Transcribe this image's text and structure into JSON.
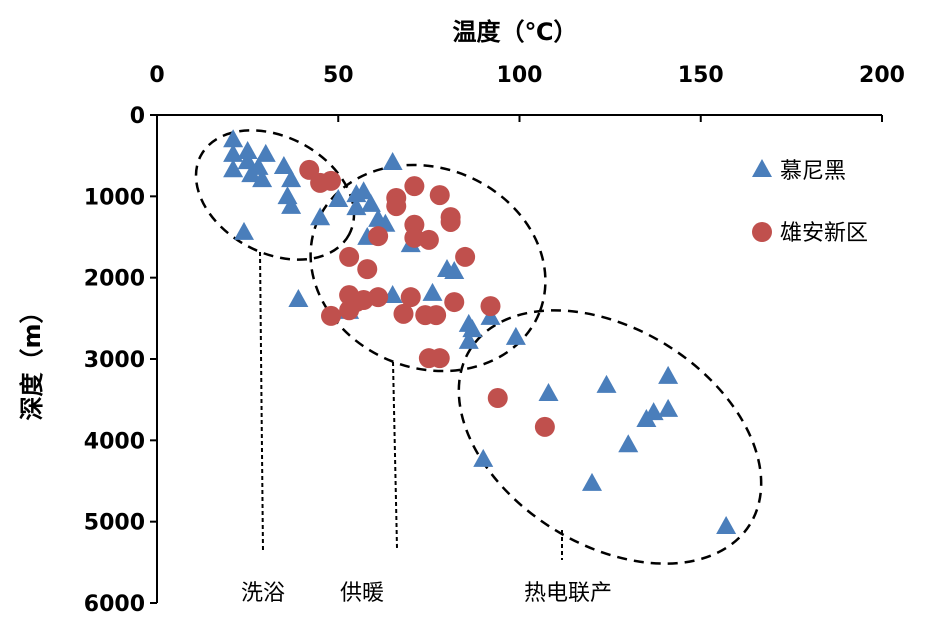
{
  "chart_data": {
    "type": "scatter",
    "xlabel": "温度（℃）",
    "ylabel": "深度（m）",
    "xlim": [
      0,
      200
    ],
    "ylim": [
      0,
      6000
    ],
    "y_inverted": true,
    "x_axis_position": "top",
    "xticks": [
      "0",
      "50",
      "100",
      "150",
      "200"
    ],
    "yticks": [
      "0",
      "1000",
      "2000",
      "3000",
      "4000",
      "5000",
      "6000"
    ],
    "grid": false,
    "legend_position": "right",
    "annotations": [
      "洗浴",
      "供暖",
      "热电联产"
    ],
    "series": [
      {
        "name": "慕尼黑",
        "marker": "triangle",
        "color": "#4a7ebb",
        "points": [
          [
            21,
            310
          ],
          [
            21,
            490
          ],
          [
            25,
            455
          ],
          [
            21,
            680
          ],
          [
            25,
            580
          ],
          [
            28,
            650
          ],
          [
            26,
            740
          ],
          [
            30,
            490
          ],
          [
            29,
            800
          ],
          [
            35,
            640
          ],
          [
            37,
            800
          ],
          [
            36,
            1010
          ],
          [
            37,
            1130
          ],
          [
            24,
            1450
          ],
          [
            65,
            590
          ],
          [
            45,
            1270
          ],
          [
            50,
            1045
          ],
          [
            55,
            985
          ],
          [
            55,
            1145
          ],
          [
            57,
            950
          ],
          [
            59,
            1105
          ],
          [
            61,
            1290
          ],
          [
            63,
            1350
          ],
          [
            58,
            1510
          ],
          [
            70,
            1600
          ],
          [
            80,
            1905
          ],
          [
            82,
            1930
          ],
          [
            39,
            2275
          ],
          [
            53,
            2420
          ],
          [
            65,
            2225
          ],
          [
            76,
            2200
          ],
          [
            86,
            2580
          ],
          [
            87,
            2645
          ],
          [
            86,
            2790
          ],
          [
            92,
            2495
          ],
          [
            99,
            2740
          ],
          [
            108,
            3430
          ],
          [
            124,
            3330
          ],
          [
            141,
            3220
          ],
          [
            141,
            3625
          ],
          [
            137,
            3665
          ],
          [
            135,
            3750
          ],
          [
            130,
            4060
          ],
          [
            120,
            4535
          ],
          [
            90,
            4240
          ],
          [
            157,
            5065
          ]
        ]
      },
      {
        "name": "雄安新区",
        "marker": "circle",
        "color": "#c0504d",
        "points": [
          [
            42,
            675
          ],
          [
            45,
            835
          ],
          [
            48,
            810
          ],
          [
            66,
            1020
          ],
          [
            66,
            1120
          ],
          [
            71,
            875
          ],
          [
            78,
            985
          ],
          [
            81,
            1255
          ],
          [
            81,
            1315
          ],
          [
            71,
            1350
          ],
          [
            71,
            1510
          ],
          [
            75,
            1535
          ],
          [
            61,
            1490
          ],
          [
            53,
            1745
          ],
          [
            58,
            1895
          ],
          [
            85,
            1745
          ],
          [
            53,
            2215
          ],
          [
            53,
            2400
          ],
          [
            55,
            2300
          ],
          [
            57,
            2275
          ],
          [
            61,
            2240
          ],
          [
            70,
            2240
          ],
          [
            68,
            2445
          ],
          [
            74,
            2460
          ],
          [
            77,
            2460
          ],
          [
            82,
            2300
          ],
          [
            92,
            2350
          ],
          [
            48,
            2470
          ],
          [
            75,
            2990
          ],
          [
            78,
            2990
          ],
          [
            94,
            3480
          ],
          [
            107,
            3835
          ]
        ]
      }
    ]
  }
}
